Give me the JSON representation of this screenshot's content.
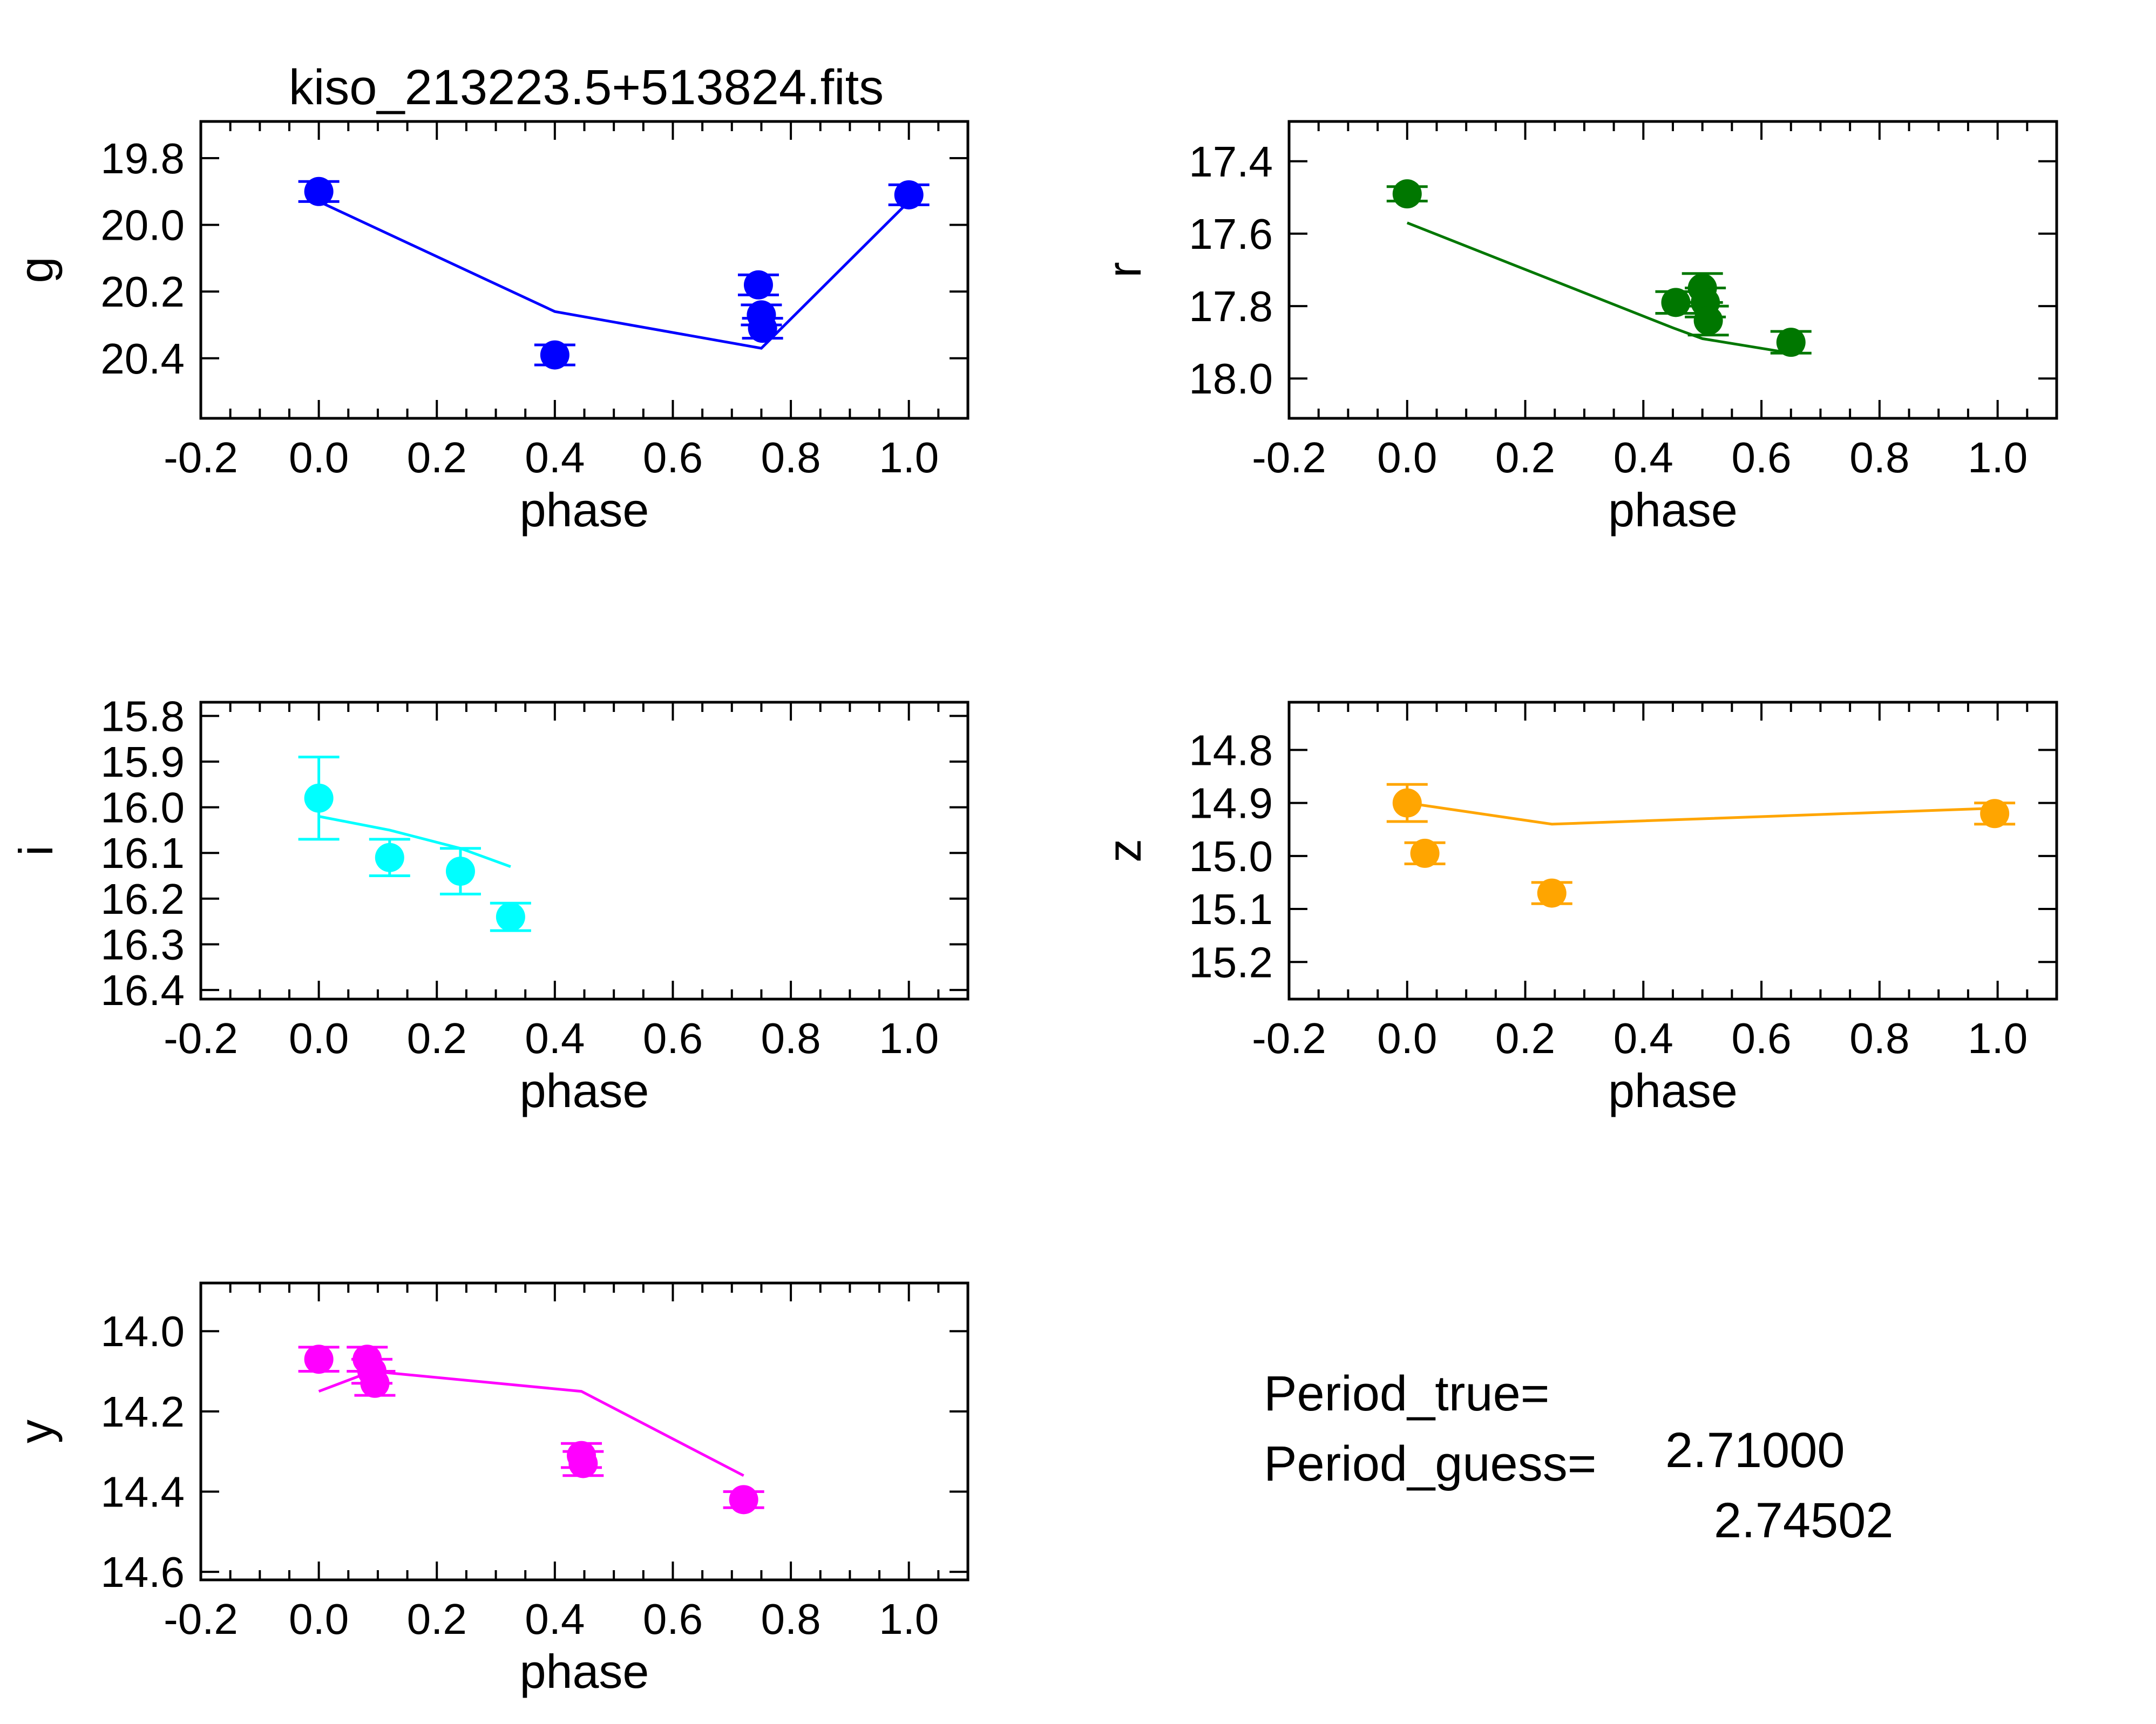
{
  "figure": {
    "title": "kiso_213223.5+513824.fits",
    "period_true_label": "Period_true=",
    "period_true_value": "2.71000",
    "period_guess_label": "Period_guess=",
    "period_guess_value": "2.74502"
  },
  "chart_data": [
    {
      "type": "scatter",
      "panel": "g",
      "title": "kiso_213223.5+513824.fits",
      "xlabel": "phase",
      "ylabel": "g",
      "color": "#0000ff",
      "xlim": [
        -0.2,
        1.1
      ],
      "ylim": [
        20.58,
        19.69
      ],
      "y_inverted": true,
      "xticks": [
        "-0.2",
        "0.0",
        "0.2",
        "0.4",
        "0.6",
        "0.8",
        "1.0"
      ],
      "yticks": [
        "19.8",
        "20.0",
        "20.2",
        "20.4"
      ],
      "points": [
        {
          "x": 0.0,
          "y": 19.9,
          "err": 0.03
        },
        {
          "x": 0.4,
          "y": 20.39,
          "err": 0.03
        },
        {
          "x": 0.745,
          "y": 20.18,
          "err": 0.03
        },
        {
          "x": 0.75,
          "y": 20.27,
          "err": 0.03
        },
        {
          "x": 0.752,
          "y": 20.31,
          "err": 0.03
        },
        {
          "x": 1.0,
          "y": 19.91,
          "err": 0.03
        }
      ],
      "model": [
        {
          "x": 0.0,
          "y": 19.93
        },
        {
          "x": 0.4,
          "y": 20.26
        },
        {
          "x": 0.75,
          "y": 20.37
        },
        {
          "x": 1.0,
          "y": 19.93
        }
      ]
    },
    {
      "type": "scatter",
      "panel": "r",
      "xlabel": "phase",
      "ylabel": "r",
      "color": "#007700",
      "xlim": [
        -0.2,
        1.1
      ],
      "ylim": [
        18.11,
        17.29
      ],
      "y_inverted": true,
      "xticks": [
        "-0.2",
        "0.0",
        "0.2",
        "0.4",
        "0.6",
        "0.8",
        "1.0"
      ],
      "yticks": [
        "17.4",
        "17.6",
        "17.8",
        "18.0"
      ],
      "points": [
        {
          "x": 0.0,
          "y": 17.49,
          "err": 0.02
        },
        {
          "x": 0.455,
          "y": 17.79,
          "err": 0.03
        },
        {
          "x": 0.5,
          "y": 17.75,
          "err": 0.04
        },
        {
          "x": 0.505,
          "y": 17.79,
          "err": 0.04
        },
        {
          "x": 0.51,
          "y": 17.84,
          "err": 0.04
        },
        {
          "x": 0.65,
          "y": 17.9,
          "err": 0.03
        }
      ],
      "model": [
        {
          "x": 0.0,
          "y": 17.57
        },
        {
          "x": 0.45,
          "y": 17.86
        },
        {
          "x": 0.5,
          "y": 17.89
        },
        {
          "x": 0.65,
          "y": 17.93
        }
      ]
    },
    {
      "type": "scatter",
      "panel": "i",
      "xlabel": "phase",
      "ylabel": "i",
      "color": "#00ffff",
      "xlim": [
        -0.2,
        1.1
      ],
      "ylim": [
        16.42,
        15.77
      ],
      "y_inverted": true,
      "xticks": [
        "-0.2",
        "0.0",
        "0.2",
        "0.4",
        "0.6",
        "0.8",
        "1.0"
      ],
      "yticks": [
        "15.8",
        "15.9",
        "16.0",
        "16.1",
        "16.2",
        "16.3",
        "16.4"
      ],
      "points": [
        {
          "x": 0.0,
          "y": 15.98,
          "err": 0.09
        },
        {
          "x": 0.12,
          "y": 16.11,
          "err": 0.04
        },
        {
          "x": 0.24,
          "y": 16.14,
          "err": 0.05
        },
        {
          "x": 0.325,
          "y": 16.24,
          "err": 0.03
        }
      ],
      "model": [
        {
          "x": 0.0,
          "y": 16.02
        },
        {
          "x": 0.12,
          "y": 16.05
        },
        {
          "x": 0.24,
          "y": 16.09
        },
        {
          "x": 0.325,
          "y": 16.13
        }
      ]
    },
    {
      "type": "scatter",
      "panel": "z",
      "xlabel": "phase",
      "ylabel": "z",
      "color": "#ffa500",
      "xlim": [
        -0.2,
        1.1
      ],
      "ylim": [
        15.27,
        14.71
      ],
      "y_inverted": true,
      "xticks": [
        "-0.2",
        "0.0",
        "0.2",
        "0.4",
        "0.6",
        "0.8",
        "1.0"
      ],
      "yticks": [
        "14.8",
        "14.9",
        "15.0",
        "15.1",
        "15.2"
      ],
      "points": [
        {
          "x": 0.0,
          "y": 14.9,
          "err": 0.035
        },
        {
          "x": 0.03,
          "y": 14.995,
          "err": 0.02
        },
        {
          "x": 0.245,
          "y": 15.07,
          "err": 0.02
        },
        {
          "x": 0.995,
          "y": 14.92,
          "err": 0.02
        }
      ],
      "model": [
        {
          "x": 0.0,
          "y": 14.9
        },
        {
          "x": 0.245,
          "y": 14.94
        },
        {
          "x": 0.995,
          "y": 14.91
        }
      ]
    },
    {
      "type": "scatter",
      "panel": "y",
      "xlabel": "phase",
      "ylabel": "y",
      "color": "#ff00ff",
      "xlim": [
        -0.2,
        1.1
      ],
      "ylim": [
        14.62,
        13.88
      ],
      "y_inverted": true,
      "xticks": [
        "-0.2",
        "0.0",
        "0.2",
        "0.4",
        "0.6",
        "0.8",
        "1.0"
      ],
      "yticks": [
        "14.0",
        "14.2",
        "14.4",
        "14.6"
      ],
      "points": [
        {
          "x": 0.0,
          "y": 14.07,
          "err": 0.03
        },
        {
          "x": 0.082,
          "y": 14.07,
          "err": 0.03
        },
        {
          "x": 0.09,
          "y": 14.1,
          "err": 0.03
        },
        {
          "x": 0.095,
          "y": 14.13,
          "err": 0.03
        },
        {
          "x": 0.445,
          "y": 14.31,
          "err": 0.03
        },
        {
          "x": 0.448,
          "y": 14.33,
          "err": 0.03
        },
        {
          "x": 0.72,
          "y": 14.42,
          "err": 0.02
        }
      ],
      "model": [
        {
          "x": 0.0,
          "y": 14.15
        },
        {
          "x": 0.09,
          "y": 14.1
        },
        {
          "x": 0.445,
          "y": 14.15
        },
        {
          "x": 0.72,
          "y": 14.36
        }
      ]
    }
  ]
}
